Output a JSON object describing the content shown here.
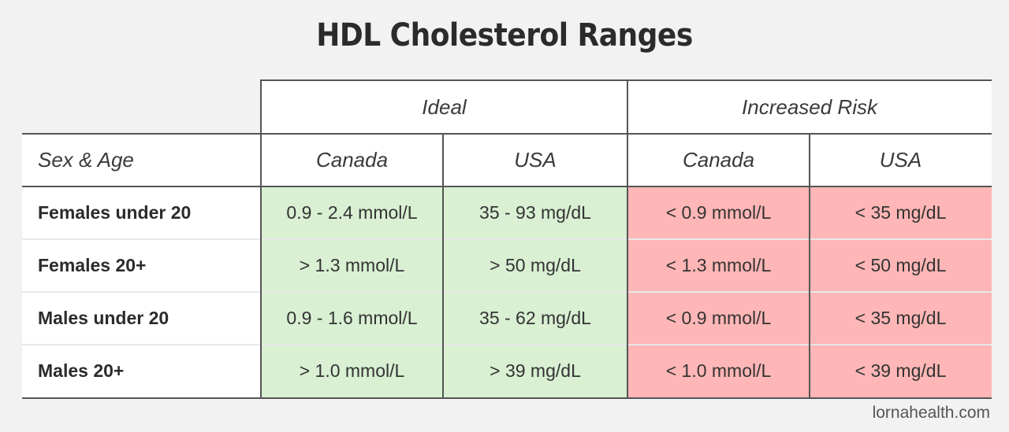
{
  "title": "HDL Cholesterol Ranges",
  "groups": {
    "ideal": "Ideal",
    "risk": "Increased Risk"
  },
  "columns": {
    "sex_age": "Sex & Age",
    "ideal_canada": "Canada",
    "ideal_usa": "USA",
    "risk_canada": "Canada",
    "risk_usa": "USA"
  },
  "rows": [
    {
      "label": "Females under 20",
      "ideal_canada": "0.9 - 2.4 mmol/L",
      "ideal_usa": "35 - 93 mg/dL",
      "risk_canada": "< 0.9 mmol/L",
      "risk_usa": "< 35 mg/dL"
    },
    {
      "label": "Females 20+",
      "ideal_canada": "> 1.3 mmol/L",
      "ideal_usa": "> 50 mg/dL",
      "risk_canada": "< 1.3 mmol/L",
      "risk_usa": "< 50 mg/dL"
    },
    {
      "label": "Males under 20",
      "ideal_canada": "0.9 - 1.6 mmol/L",
      "ideal_usa": "35 - 62 mg/dL",
      "risk_canada": "< 0.9 mmol/L",
      "risk_usa": "< 35 mg/dL"
    },
    {
      "label": "Males 20+",
      "ideal_canada": "> 1.0 mmol/L",
      "ideal_usa": "> 39 mg/dL",
      "risk_canada": "< 1.0 mmol/L",
      "risk_usa": "< 39 mg/dL"
    }
  ],
  "credit": "lornahealth.com",
  "colors": {
    "ideal": "#d9f0d3",
    "risk": "#ffb6b6"
  }
}
